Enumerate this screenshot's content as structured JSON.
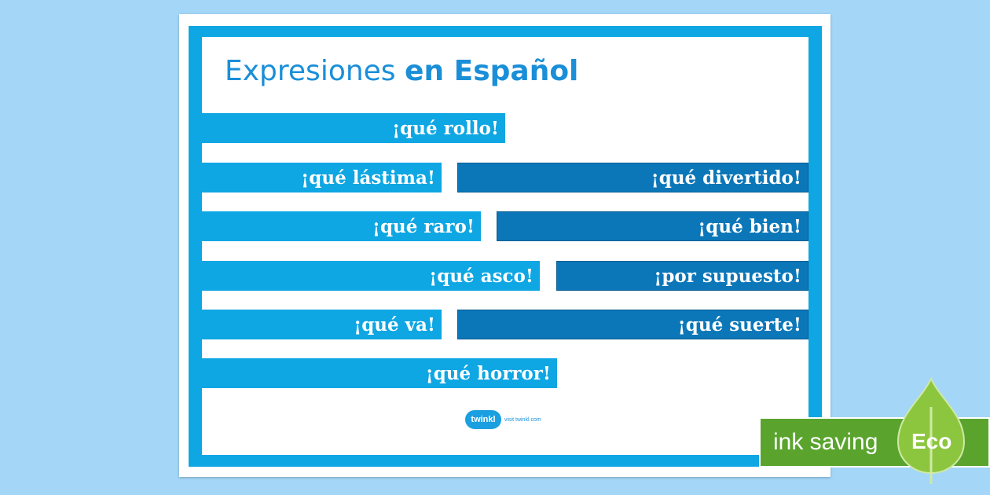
{
  "title": {
    "regular": "Expresiones",
    "bold": "en Español"
  },
  "expressions_left": [
    "¡qué rollo!",
    "¡qué lástima!",
    "¡qué raro!",
    "¡qué asco!",
    "¡qué va!",
    "¡qué horror!"
  ],
  "expressions_right": [
    "¡qué divertido!",
    "¡qué bien!",
    "¡por supuesto!",
    "¡qué suerte!"
  ],
  "logo": {
    "name": "twinkl",
    "url_text": "visit twinkl.com"
  },
  "eco": {
    "ink_saving": "ink saving",
    "badge": "Eco"
  },
  "colors": {
    "background": "#a3d6f7",
    "light_blue": "#0ea6e3",
    "dark_blue": "#0b77b8",
    "eco_green": "#5aa42e"
  }
}
